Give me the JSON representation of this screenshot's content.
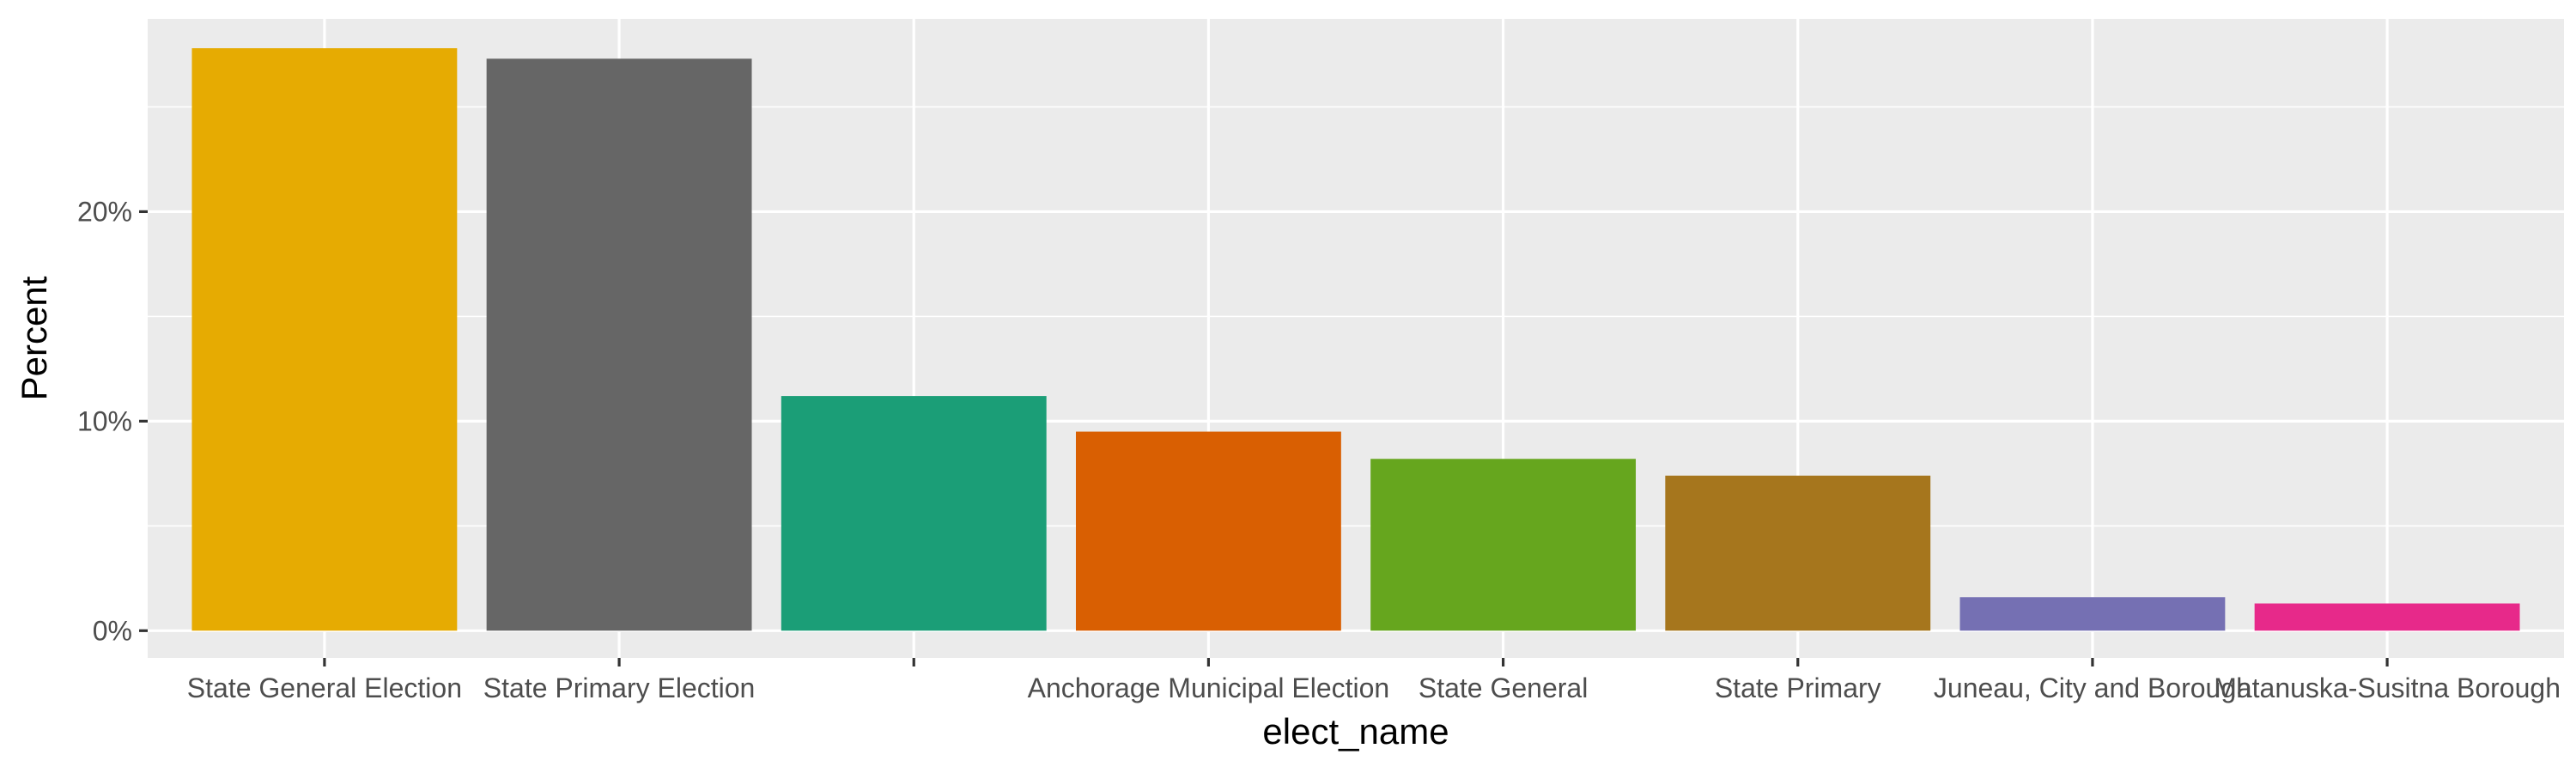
{
  "chart_data": {
    "type": "bar",
    "title": "",
    "xlabel": "elect_name",
    "ylabel": "Percent",
    "categories": [
      "State General Election",
      "State Primary Election",
      "",
      "Anchorage Municipal Election",
      "State General",
      "State Primary",
      "Juneau, City and Borough",
      "Matanuska-Susitna Borough"
    ],
    "values": [
      27.8,
      27.3,
      11.2,
      9.5,
      8.2,
      7.4,
      1.6,
      1.3
    ],
    "colors": [
      "#E6AB02",
      "#666666",
      "#1B9E77",
      "#D95F02",
      "#66A61E",
      "#A6761D",
      "#7570B3",
      "#E7298A"
    ],
    "ylim": [
      -1.3,
      29.2
    ],
    "y_ticks": [
      0,
      10,
      20
    ],
    "y_tick_labels": [
      "0%",
      "10%",
      "20%"
    ],
    "grid": true,
    "legend": "none",
    "panel_background": "#EBEBEB",
    "grid_color": "#FFFFFF"
  }
}
